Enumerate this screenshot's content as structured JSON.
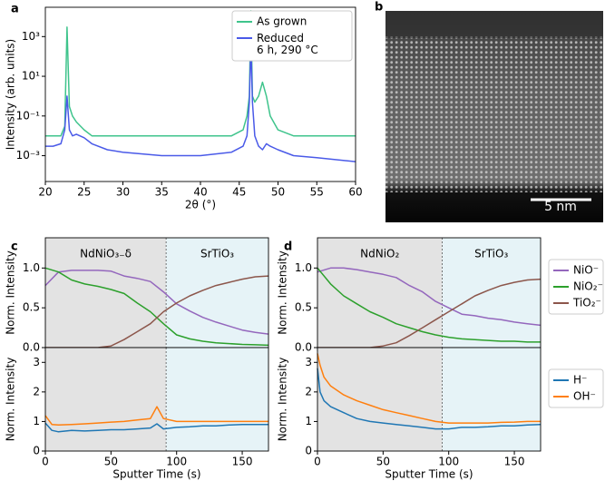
{
  "chart_data": [
    {
      "panel": "a",
      "type": "line",
      "yscale": "log",
      "xlabel": "2θ (°)",
      "ylabel": "Intensity (arb. units)",
      "xlim": [
        20,
        60
      ],
      "xticks": [
        20,
        25,
        30,
        35,
        40,
        45,
        50,
        55,
        60
      ],
      "ylim": [
        5e-05,
        30000
      ],
      "yticks": [
        {
          "value": 0.001,
          "label": "10⁻³"
        },
        {
          "value": 0.1,
          "label": "10⁻¹"
        },
        {
          "value": 10,
          "label": "10¹"
        },
        {
          "value": 1000,
          "label": "10³"
        }
      ],
      "legend": "upper right",
      "x": [
        20,
        21,
        22,
        22.5,
        22.8,
        23.1,
        23.5,
        24,
        25,
        26,
        28,
        30,
        35,
        40,
        44,
        45.5,
        46,
        46.3,
        46.5,
        46.7,
        47,
        47.5,
        48,
        48.5,
        49,
        50,
        52,
        55,
        60
      ],
      "series": [
        {
          "name": "As grown",
          "color": "#3fc48c",
          "values": [
            0.01,
            0.01,
            0.01,
            0.03,
            3000,
            0.3,
            0.1,
            0.05,
            0.02,
            0.01,
            0.01,
            0.01,
            0.01,
            0.01,
            0.01,
            0.02,
            0.1,
            1,
            20000,
            1,
            0.5,
            1,
            5,
            1,
            0.1,
            0.02,
            0.01,
            0.01,
            0.01
          ]
        },
        {
          "name": "Reduced\n6 h, 290 °C",
          "color": "#4a5ae8",
          "values": [
            0.003,
            0.003,
            0.004,
            0.02,
            1,
            0.02,
            0.01,
            0.012,
            0.008,
            0.004,
            0.002,
            0.0015,
            0.001,
            0.001,
            0.0015,
            0.003,
            0.01,
            0.5,
            500,
            0.5,
            0.01,
            0.003,
            0.002,
            0.004,
            0.003,
            0.002,
            0.001,
            0.0008,
            0.0005
          ]
        }
      ]
    },
    {
      "panel": "b",
      "type": "image",
      "scale_bar": "5 nm"
    },
    {
      "panel": "c",
      "type": "line",
      "ylabel": "Norm. Intensity",
      "xlim": [
        0,
        170
      ],
      "xticks": [
        0,
        50,
        100,
        150
      ],
      "ylim": [
        0,
        1.38
      ],
      "yticks": [
        {
          "value": 0,
          "label": "0.0"
        },
        {
          "value": 0.5,
          "label": "0.5"
        },
        {
          "value": 1,
          "label": "1.0"
        }
      ],
      "regions": [
        {
          "label": "NdNiO₃₋δ",
          "xlim": [
            0,
            92
          ],
          "color": "#e3e3e3"
        },
        {
          "label": "SrTiO₃",
          "xlim": [
            92,
            170
          ],
          "color": "#e6f3f7"
        }
      ],
      "x": [
        0,
        10,
        20,
        30,
        40,
        50,
        60,
        70,
        80,
        90,
        100,
        110,
        120,
        130,
        140,
        150,
        160,
        170
      ],
      "series": [
        {
          "color": "#9467bd",
          "values": [
            0.78,
            0.95,
            0.97,
            0.97,
            0.97,
            0.96,
            0.9,
            0.87,
            0.83,
            0.7,
            0.55,
            0.46,
            0.38,
            0.32,
            0.27,
            0.22,
            0.19,
            0.17
          ]
        },
        {
          "color": "#2ca02c",
          "values": [
            1.0,
            0.95,
            0.85,
            0.8,
            0.77,
            0.73,
            0.68,
            0.56,
            0.45,
            0.3,
            0.16,
            0.11,
            0.08,
            0.06,
            0.05,
            0.04,
            0.035,
            0.03
          ]
        },
        {
          "color": "#8c564b",
          "values": [
            0,
            0,
            0,
            0,
            0,
            0.02,
            0.1,
            0.2,
            0.3,
            0.45,
            0.56,
            0.65,
            0.72,
            0.78,
            0.82,
            0.86,
            0.89,
            0.9
          ]
        }
      ]
    },
    {
      "type": "line",
      "ylabel": "Norm. Intensity",
      "xlabel": "Sputter Time (s)",
      "xlim": [
        0,
        170
      ],
      "xticks": [
        0,
        50,
        100,
        150
      ],
      "ylim": [
        0,
        3.5
      ],
      "yticks": [
        0,
        1,
        2,
        3
      ],
      "regions": [
        {
          "xlim": [
            0,
            92
          ],
          "color": "#e3e3e3"
        },
        {
          "xlim": [
            92,
            170
          ],
          "color": "#e6f3f7"
        }
      ],
      "x": [
        0,
        5,
        10,
        20,
        30,
        40,
        50,
        60,
        70,
        80,
        85,
        90,
        100,
        110,
        120,
        130,
        140,
        150,
        160,
        170
      ],
      "series": [
        {
          "color": "#1f77b4",
          "values": [
            0.95,
            0.7,
            0.65,
            0.7,
            0.68,
            0.7,
            0.72,
            0.72,
            0.75,
            0.78,
            0.92,
            0.75,
            0.8,
            0.82,
            0.85,
            0.85,
            0.88,
            0.9,
            0.9,
            0.9
          ]
        },
        {
          "color": "#ff7f0e",
          "values": [
            1.2,
            0.9,
            0.88,
            0.9,
            0.92,
            0.95,
            0.98,
            1.0,
            1.05,
            1.1,
            1.5,
            1.1,
            1.0,
            1.0,
            1.0,
            1.0,
            1.0,
            1.0,
            1.0,
            1.0
          ]
        }
      ]
    },
    {
      "panel": "d",
      "type": "line",
      "ylabel": "Norm. Intensity",
      "xlim": [
        0,
        170
      ],
      "xticks": [
        0,
        50,
        100,
        150
      ],
      "ylim": [
        0,
        1.38
      ],
      "yticks": [
        {
          "value": 0,
          "label": "0.0"
        },
        {
          "value": 0.5,
          "label": "0.5"
        },
        {
          "value": 1,
          "label": "1.0"
        }
      ],
      "regions": [
        {
          "label": "NdNiO₂",
          "xlim": [
            0,
            95
          ],
          "color": "#e3e3e3"
        },
        {
          "label": "SrTiO₃",
          "xlim": [
            95,
            170
          ],
          "color": "#e6f3f7"
        }
      ],
      "legend": "outside right",
      "x": [
        0,
        10,
        20,
        30,
        40,
        50,
        60,
        70,
        80,
        90,
        100,
        110,
        120,
        130,
        140,
        150,
        160,
        170
      ],
      "series": [
        {
          "name": "NiO⁻",
          "color": "#9467bd",
          "values": [
            0.95,
            1.0,
            1.0,
            0.98,
            0.95,
            0.92,
            0.88,
            0.78,
            0.7,
            0.58,
            0.5,
            0.42,
            0.4,
            0.37,
            0.35,
            0.32,
            0.3,
            0.28
          ]
        },
        {
          "name": "NiO₂⁻",
          "color": "#2ca02c",
          "values": [
            1.0,
            0.8,
            0.65,
            0.55,
            0.45,
            0.38,
            0.3,
            0.25,
            0.2,
            0.16,
            0.13,
            0.11,
            0.1,
            0.09,
            0.08,
            0.08,
            0.07,
            0.07
          ]
        },
        {
          "name": "TiO₂⁻",
          "color": "#8c564b",
          "values": [
            0,
            0,
            0,
            0,
            0,
            0.02,
            0.06,
            0.15,
            0.25,
            0.35,
            0.45,
            0.55,
            0.65,
            0.72,
            0.78,
            0.82,
            0.85,
            0.86
          ]
        }
      ]
    },
    {
      "type": "line",
      "ylabel": "Norm. Intensity",
      "xlabel": "Sputter Time (s)",
      "xlim": [
        0,
        170
      ],
      "xticks": [
        0,
        50,
        100,
        150
      ],
      "ylim": [
        0,
        3.5
      ],
      "yticks": [
        0,
        1,
        2,
        3
      ],
      "regions": [
        {
          "xlim": [
            0,
            95
          ],
          "color": "#e3e3e3"
        },
        {
          "xlim": [
            95,
            170
          ],
          "color": "#e6f3f7"
        }
      ],
      "legend": "outside right",
      "x": [
        0,
        2,
        5,
        10,
        20,
        30,
        40,
        50,
        60,
        70,
        80,
        90,
        100,
        110,
        120,
        130,
        140,
        150,
        160,
        170
      ],
      "series": [
        {
          "name": "H⁻",
          "color": "#1f77b4",
          "values": [
            2.8,
            2.0,
            1.7,
            1.5,
            1.3,
            1.1,
            1.0,
            0.95,
            0.9,
            0.85,
            0.8,
            0.75,
            0.75,
            0.8,
            0.8,
            0.82,
            0.85,
            0.85,
            0.88,
            0.9
          ]
        },
        {
          "name": "OH⁻",
          "color": "#ff7f0e",
          "values": [
            3.3,
            2.9,
            2.5,
            2.2,
            1.9,
            1.7,
            1.55,
            1.4,
            1.3,
            1.2,
            1.1,
            1.0,
            0.95,
            0.95,
            0.95,
            0.95,
            0.97,
            0.98,
            1.0,
            1.0
          ]
        }
      ]
    }
  ]
}
